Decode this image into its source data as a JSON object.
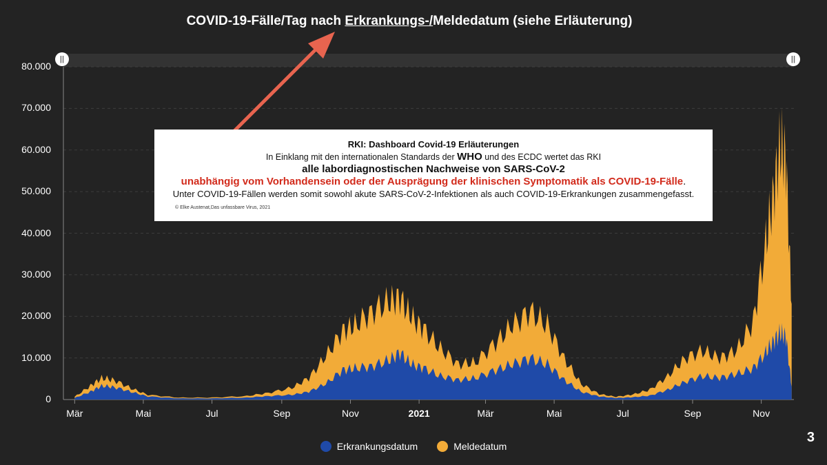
{
  "title": {
    "prefix": "COVID-19-Fälle/Tag nach ",
    "underlined": "Erkrankungs-/",
    "suffix": "Meldedatum (siehe Erläuterung)"
  },
  "note": {
    "line1": "RKI: Dashboard Covid-19 Erläuterungen",
    "line2_a": "In Einklang mit den internationalen Standards der ",
    "line2_b": "WHO",
    "line2_c": " und des ECDC wertet das RKI",
    "line3": "alle labordiagnostischen Nachweise von SARS-CoV-2",
    "line4": "unabhängig vom Vorhandensein oder der Ausprägung der klinischen Symptomatik als COVID-19-Fälle",
    "line4_end": ".",
    "line5": "Unter COVID-19-Fällen werden somit sowohl akute SARS-CoV-2-Infektionen als auch COVID-19-Erkrankungen zusammengefasst.",
    "credit": "© Elke Austenat,Das unfassbare Virus, 2021"
  },
  "handle_glyph": "||",
  "page_number": "3",
  "colors": {
    "background": "#232323",
    "erkrankung": "#1f4aa8",
    "melde": "#f2ab38",
    "arrow": "#e8644f",
    "grid": "#3d3d3d"
  },
  "chart_data": {
    "type": "area",
    "title": "COVID-19-Fälle/Tag nach Erkrankungs-/Meldedatum (siehe Erläuterung)",
    "ylim": [
      0,
      80000
    ],
    "yticks": [
      "0",
      "10.000",
      "20.000",
      "30.000",
      "40.000",
      "50.000",
      "60.000",
      "70.000",
      "80.000"
    ],
    "xticks": [
      "Mär",
      "Mai",
      "Jul",
      "Sep",
      "Nov",
      "2021",
      "Mär",
      "Mai",
      "Jul",
      "Sep",
      "Nov"
    ],
    "x_range": [
      "2020-02-20",
      "2021-11-30"
    ],
    "stacked": true,
    "legend_position": "bottom",
    "grid": true,
    "x": [
      "2020-03-01",
      "2020-03-15",
      "2020-03-25",
      "2020-04-05",
      "2020-04-20",
      "2020-05-05",
      "2020-06-01",
      "2020-07-01",
      "2020-08-01",
      "2020-08-20",
      "2020-09-10",
      "2020-09-25",
      "2020-10-10",
      "2020-10-25",
      "2020-11-05",
      "2020-11-20",
      "2020-12-05",
      "2020-12-15",
      "2020-12-25",
      "2021-01-05",
      "2021-01-20",
      "2021-02-05",
      "2021-02-20",
      "2021-03-10",
      "2021-03-25",
      "2021-04-10",
      "2021-04-25",
      "2021-05-10",
      "2021-05-25",
      "2021-06-10",
      "2021-06-25",
      "2021-07-10",
      "2021-07-25",
      "2021-08-10",
      "2021-08-25",
      "2021-09-10",
      "2021-09-25",
      "2021-10-10",
      "2021-10-25",
      "2021-11-05",
      "2021-11-12",
      "2021-11-18",
      "2021-11-23",
      "2021-11-28"
    ],
    "series": [
      {
        "name": "Erkrankungsdatum",
        "values": [
          400,
          2000,
          3500,
          3200,
          2000,
          800,
          300,
          300,
          500,
          900,
          1200,
          2000,
          4000,
          7500,
          8000,
          8500,
          10000,
          12000,
          9000,
          8000,
          6000,
          5000,
          5500,
          7500,
          9000,
          10500,
          9000,
          5000,
          2000,
          800,
          400,
          600,
          1000,
          2500,
          4500,
          6000,
          5500,
          6500,
          8000,
          12000,
          15000,
          17000,
          16000,
          3000
        ]
      },
      {
        "name": "Meldedatum",
        "values": [
          300,
          1500,
          2000,
          1800,
          900,
          400,
          200,
          200,
          400,
          800,
          1800,
          3500,
          7000,
          10000,
          11000,
          14000,
          15000,
          14000,
          12000,
          10000,
          7000,
          4000,
          4000,
          7000,
          10000,
          12000,
          10000,
          5500,
          2000,
          600,
          300,
          700,
          1500,
          3500,
          6000,
          6500,
          5000,
          6000,
          12000,
          28000,
          38000,
          48000,
          45000,
          20000
        ]
      }
    ]
  },
  "legend": [
    {
      "label": "Erkrankungsdatum",
      "color": "#1f4aa8"
    },
    {
      "label": "Meldedatum",
      "color": "#f2ab38"
    }
  ]
}
